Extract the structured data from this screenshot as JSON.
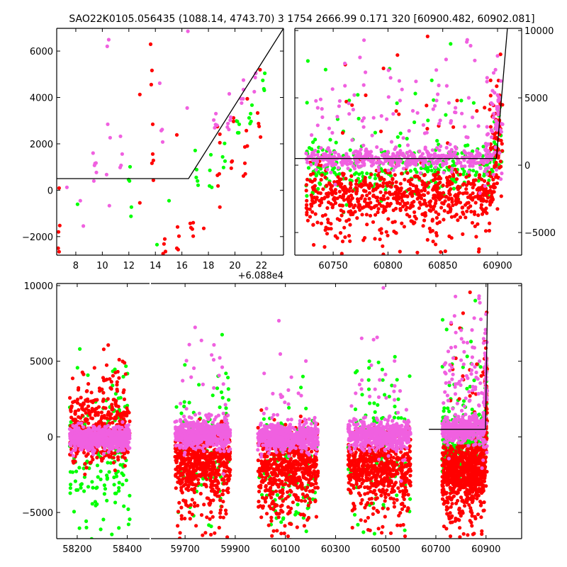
{
  "chart_data": {
    "type": "scatter",
    "title": "SAO22K0105.056435 (1088.14, 4743.70)   3 1754 2666.99 0.171 320 [60900.482, 60902.081]",
    "colors": {
      "red": "#ff0000",
      "green": "#00ff00",
      "magenta": "#f060e0",
      "line": "#000000"
    },
    "panels": [
      {
        "id": "top-left",
        "x_offset": 60880,
        "offset_label": "+6.088e4",
        "xlim": [
          6.56,
          23.66
        ],
        "ylim": [
          -2800,
          6980
        ],
        "xticks": [
          8,
          10,
          12,
          14,
          16,
          18,
          20,
          22
        ],
        "xtick_labels": [
          "8",
          "10",
          "12",
          "14",
          "16",
          "18",
          "20",
          "22"
        ],
        "yticks": [
          -2000,
          0,
          2000,
          4000,
          6000
        ],
        "ytick_labels": [
          "−2000",
          "0",
          "2000",
          "4000",
          "6000"
        ],
        "ytick_side": "left",
        "line": [
          [
            6.56,
            500
          ],
          [
            16.5,
            500
          ],
          [
            23.66,
            6980
          ]
        ],
        "points": {
          "magenta": [
            [
              10.48,
              6490
            ],
            [
              10.37,
              6203
            ],
            [
              16.45,
              6855
            ],
            [
              14.33,
              4615
            ],
            [
              16.4,
              3546
            ],
            [
              10.41,
              2844
            ],
            [
              10.59,
              2264
            ],
            [
              11.37,
              2325
            ],
            [
              14.44,
              2569
            ],
            [
              14.51,
              2620
            ],
            [
              14.55,
              2080
            ],
            [
              9.3,
              1602
            ],
            [
              11.5,
              1561
            ],
            [
              9.45,
              1154
            ],
            [
              9.52,
              1174
            ],
            [
              9.41,
              1073
            ],
            [
              9.55,
              767
            ],
            [
              11.41,
              1073
            ],
            [
              11.34,
              981
            ],
            [
              10.32,
              676
            ],
            [
              9.36,
              401
            ],
            [
              7.33,
              126
            ],
            [
              8.34,
              -454
            ],
            [
              10.53,
              -668
            ],
            [
              8.57,
              -1544
            ],
            [
              18.56,
              3302
            ],
            [
              18.4,
              3027
            ],
            [
              18.54,
              2834
            ],
            [
              18.47,
              2691
            ],
            [
              18.65,
              2803
            ],
            [
              19.57,
              4157
            ],
            [
              20.64,
              4748
            ],
            [
              20.64,
              4340
            ],
            [
              20.46,
              3943
            ],
            [
              20.61,
              3943
            ],
            [
              20.5,
              3760
            ],
            [
              21.46,
              4249
            ],
            [
              21.53,
              4860
            ],
            [
              21.57,
              5043
            ],
            [
              19.68,
              3149
            ],
            [
              19.64,
              3017
            ],
            [
              19.47,
              2874
            ],
            [
              19.43,
              2722
            ],
            [
              19.54,
              2620
            ]
          ],
          "red": [
            [
              13.64,
              6295
            ],
            [
              13.74,
              5165
            ],
            [
              13.69,
              4554
            ],
            [
              12.83,
              4127
            ],
            [
              13.8,
              2844
            ],
            [
              15.62,
              2386
            ],
            [
              13.8,
              1561
            ],
            [
              13.85,
              1286
            ],
            [
              13.74,
              1164
            ],
            [
              13.85,
              431
            ],
            [
              6.74,
              95
            ],
            [
              12.83,
              -546
            ],
            [
              6.79,
              -1523
            ],
            [
              6.7,
              -1798
            ],
            [
              6.67,
              -2501
            ],
            [
              6.74,
              -2653
            ],
            [
              14.71,
              -2104
            ],
            [
              14.65,
              -2317
            ],
            [
              14.76,
              -2643
            ],
            [
              14.58,
              -2735
            ],
            [
              15.67,
              -1584
            ],
            [
              15.78,
              -1982
            ],
            [
              15.62,
              -2501
            ],
            [
              15.72,
              -2562
            ],
            [
              16.63,
              -1432
            ],
            [
              16.85,
              -1401
            ],
            [
              16.68,
              -1615
            ],
            [
              16.79,
              -1676
            ],
            [
              16.85,
              -1982
            ],
            [
              17.65,
              -1645
            ],
            [
              18.86,
              2416
            ],
            [
              18.86,
              2050
            ],
            [
              18.68,
              2742
            ],
            [
              18.72,
              187
            ],
            [
              18.86,
              -729
            ],
            [
              18.68,
              645
            ],
            [
              18.82,
              706
            ],
            [
              19.75,
              1225
            ],
            [
              19.79,
              1256
            ],
            [
              19.72,
              950
            ],
            [
              19.89,
              3119
            ],
            [
              19.89,
              2966
            ],
            [
              20.93,
              3943
            ],
            [
              21.71,
              3332
            ],
            [
              21.78,
              2874
            ],
            [
              21.82,
              2752
            ],
            [
              20.86,
              2569
            ],
            [
              21.93,
              2294
            ],
            [
              20.75,
              1867
            ],
            [
              20.93,
              1907
            ],
            [
              20.75,
              1164
            ],
            [
              20.64,
              614
            ],
            [
              20.78,
              706
            ],
            [
              21.89,
              5196
            ]
          ],
          "green": [
            [
              12.09,
              1012
            ],
            [
              11.98,
              462
            ],
            [
              12.05,
              401
            ],
            [
              8.13,
              -607
            ],
            [
              12.19,
              -729
            ],
            [
              12.16,
              -1126
            ],
            [
              15.03,
              -454
            ],
            [
              14.12,
              -2348
            ],
            [
              17.0,
              1714
            ],
            [
              17.11,
              889
            ],
            [
              17.08,
              553
            ],
            [
              17.18,
              401
            ],
            [
              17.22,
              217
            ],
            [
              18.18,
              1531
            ],
            [
              18.11,
              859
            ],
            [
              18.08,
              187
            ],
            [
              18.25,
              126
            ],
            [
              19.07,
              1439
            ],
            [
              19.25,
              1256
            ],
            [
              19.14,
              981
            ],
            [
              19.22,
              2019
            ],
            [
              20.11,
              2986
            ],
            [
              20.18,
              2966
            ],
            [
              20.32,
              2844
            ],
            [
              20.21,
              2477
            ],
            [
              20.29,
              2477
            ],
            [
              21.28,
              3669
            ],
            [
              21.18,
              3302
            ],
            [
              21.07,
              3119
            ],
            [
              21.21,
              2966
            ],
            [
              21.14,
              2874
            ],
            [
              22.25,
              5043
            ],
            [
              22.1,
              4737
            ],
            [
              22.18,
              4371
            ],
            [
              22.21,
              4310
            ]
          ]
        }
      },
      {
        "id": "top-right",
        "xlim": [
          60715,
          60922
        ],
        "ylim": [
          -6680,
          10160
        ],
        "xticks": [
          60750,
          60800,
          60850,
          60900
        ],
        "xtick_labels": [
          "60750",
          "60800",
          "60850",
          "60900"
        ],
        "yticks": [
          -5000,
          0,
          5000,
          10000
        ],
        "ytick_labels": [
          "−5000",
          "0",
          "5000",
          "10000"
        ],
        "ytick_side": "right",
        "line": [
          [
            60715,
            500
          ],
          [
            60899,
            500
          ],
          [
            60909,
            10160
          ]
        ]
      },
      {
        "id": "bottom",
        "broken_x": true,
        "segments": [
          {
            "xlim": [
              58118,
              58489
            ],
            "xticks": [
              58200,
              58400
            ],
            "xtick_labels": [
              "58200",
              "58400"
            ]
          },
          {
            "xlim": [
              59564,
              61042
            ],
            "xticks": [
              59700,
              59900,
              60100,
              60300,
              60500,
              60700,
              60900
            ],
            "xtick_labels": [
              "59700",
              "59900",
              "60100",
              "60300",
              "60500",
              "60700",
              "60900"
            ]
          }
        ],
        "ylim": [
          -6730,
          10140
        ],
        "yticks": [
          -5000,
          0,
          5000,
          10000
        ],
        "ytick_labels": [
          "−5000",
          "0",
          "5000",
          "10000"
        ],
        "ytick_side": "left",
        "line": [
          [
            60672,
            500
          ],
          [
            60898,
            500
          ],
          [
            60907,
            10140
          ]
        ]
      }
    ],
    "clusters": [
      {
        "color": "green",
        "x": [
          58170,
          58410
        ],
        "y_mean": -1500,
        "y_sd": 2800,
        "n": 170
      },
      {
        "color": "red",
        "x": [
          58170,
          58410
        ],
        "y_mean": 300,
        "y_sd": 1100,
        "n": 420
      },
      {
        "color": "red",
        "x": [
          58180,
          58400
        ],
        "y_mean": 2600,
        "y_sd": 1500,
        "n": 70
      },
      {
        "color": "magenta",
        "x": [
          58170,
          58410
        ],
        "y_mean": -100,
        "y_sd": 380,
        "n": 650
      },
      {
        "color": "green",
        "x": [
          59660,
          59880
        ],
        "y_mean": -200,
        "y_sd": 2800,
        "n": 90
      },
      {
        "color": "red",
        "x": [
          59660,
          59880
        ],
        "y_mean": -1500,
        "y_sd": 1000,
        "n": 520
      },
      {
        "color": "red",
        "x": [
          59670,
          59870
        ],
        "y_mean": -4200,
        "y_sd": 1400,
        "n": 90
      },
      {
        "color": "magenta",
        "x": [
          59660,
          59880
        ],
        "y_mean": 200,
        "y_sd": 450,
        "n": 550
      },
      {
        "color": "magenta",
        "x": [
          59670,
          59870
        ],
        "y_mean": 3500,
        "y_sd": 2600,
        "n": 30
      },
      {
        "color": "green",
        "x": [
          59990,
          60230
        ],
        "y_mean": -2300,
        "y_sd": 2600,
        "n": 130
      },
      {
        "color": "red",
        "x": [
          59990,
          60230
        ],
        "y_mean": -1800,
        "y_sd": 1100,
        "n": 520
      },
      {
        "color": "red",
        "x": [
          60000,
          60220
        ],
        "y_mean": -4500,
        "y_sd": 1400,
        "n": 90
      },
      {
        "color": "magenta",
        "x": [
          59990,
          60230
        ],
        "y_mean": 0,
        "y_sd": 450,
        "n": 520
      },
      {
        "color": "magenta",
        "x": [
          60000,
          60220
        ],
        "y_mean": 2500,
        "y_sd": 1800,
        "n": 25
      },
      {
        "color": "green",
        "x": [
          60350,
          60600
        ],
        "y_mean": -500,
        "y_sd": 3200,
        "n": 110
      },
      {
        "color": "red",
        "x": [
          60350,
          60600
        ],
        "y_mean": -1900,
        "y_sd": 1000,
        "n": 520
      },
      {
        "color": "red",
        "x": [
          60360,
          60590
        ],
        "y_mean": -4300,
        "y_sd": 1400,
        "n": 90
      },
      {
        "color": "magenta",
        "x": [
          60350,
          60600
        ],
        "y_mean": 100,
        "y_sd": 450,
        "n": 520
      },
      {
        "color": "magenta",
        "x": [
          60360,
          60590
        ],
        "y_mean": 3500,
        "y_sd": 2500,
        "n": 30
      },
      {
        "color": "green",
        "x": [
          60725,
          60895
        ],
        "y_mean": -400,
        "y_sd": 900,
        "n": 260
      },
      {
        "color": "green",
        "x": [
          60725,
          60895
        ],
        "y_mean": 2500,
        "y_sd": 3000,
        "n": 40
      },
      {
        "color": "red",
        "x": [
          60725,
          60895
        ],
        "y_mean": -2100,
        "y_sd": 900,
        "n": 560
      },
      {
        "color": "red",
        "x": [
          60725,
          60895
        ],
        "y_mean": -4300,
        "y_sd": 1200,
        "n": 130
      },
      {
        "color": "red",
        "x": [
          60740,
          60890
        ],
        "y_mean": 3500,
        "y_sd": 2500,
        "n": 20
      },
      {
        "color": "magenta",
        "x": [
          60725,
          60895
        ],
        "y_mean": 500,
        "y_sd": 380,
        "n": 420
      },
      {
        "color": "magenta",
        "x": [
          60730,
          60890
        ],
        "y_mean": 3500,
        "y_sd": 2600,
        "n": 90
      },
      {
        "color": "red",
        "x": [
          60895,
          60905
        ],
        "y_mean": 1500,
        "y_sd": 2500,
        "n": 45
      },
      {
        "color": "green",
        "x": [
          60895,
          60905
        ],
        "y_mean": 2000,
        "y_sd": 1500,
        "n": 15
      },
      {
        "color": "magenta",
        "x": [
          60895,
          60905
        ],
        "y_mean": 3000,
        "y_sd": 2500,
        "n": 25
      }
    ]
  }
}
